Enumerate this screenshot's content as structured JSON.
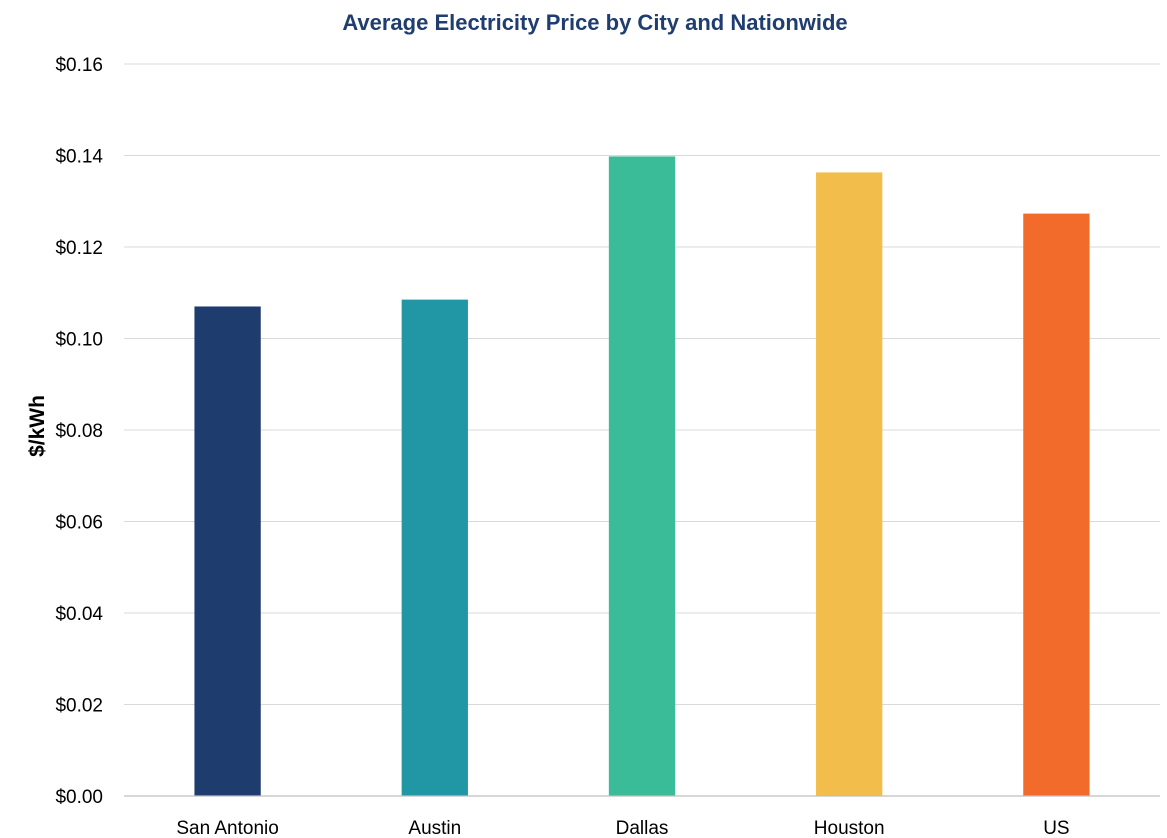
{
  "chart_data": {
    "type": "bar",
    "title": "Average Electricity Price by City and Nationwide",
    "xlabel": "",
    "ylabel": "$/kWh",
    "categories": [
      "San Antonio",
      "Austin",
      "Dallas",
      "Houston",
      "US"
    ],
    "values": [
      0.107,
      0.1085,
      0.1398,
      0.1363,
      0.1273
    ],
    "colors": [
      "#1e3d6e",
      "#2197a6",
      "#3bbc99",
      "#f2bd4a",
      "#f26b2a"
    ],
    "ylim": [
      0,
      0.16
    ],
    "yticks": [
      {
        "value": 0,
        "label": "$0.00"
      },
      {
        "value": 0.02,
        "label": "$0.02"
      },
      {
        "value": 0.04,
        "label": "$0.04"
      },
      {
        "value": 0.06,
        "label": "$0.06"
      },
      {
        "value": 0.08,
        "label": "$0.08"
      },
      {
        "value": 0.1,
        "label": "$0.10"
      },
      {
        "value": 0.12,
        "label": "$0.12"
      },
      {
        "value": 0.14,
        "label": "$0.14"
      },
      {
        "value": 0.16,
        "label": "$0.16"
      }
    ],
    "grid": true,
    "legend": "none"
  }
}
